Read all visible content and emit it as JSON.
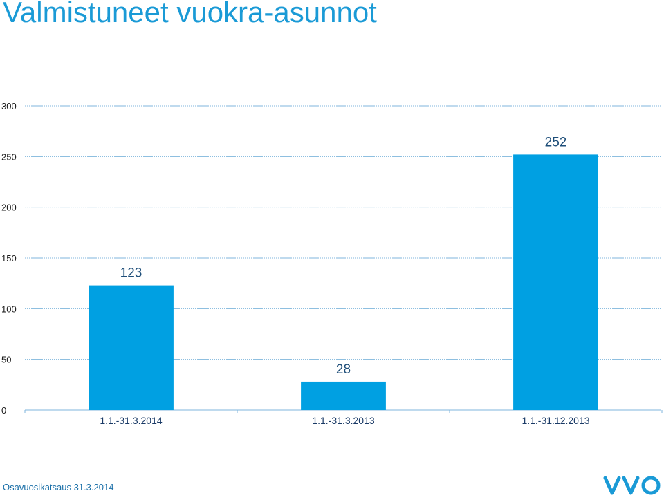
{
  "title": "Valmistuneet vuokra-asunnot",
  "footer": "Osavuosikatsaus 31.3.2014",
  "logo_icon": "vvo-logo-icon",
  "colors": {
    "bar": "#00a0e2",
    "title": "#1a9ad6",
    "grid": "#7fb6dc",
    "footer": "#1a6fa8",
    "logo": "#1a9ad6"
  },
  "chart_data": {
    "type": "bar",
    "categories": [
      "1.1.-31.3.2014",
      "1.1.-31.3.2013",
      "1.1.-31.12.2013"
    ],
    "values": [
      123,
      28,
      252
    ],
    "data_labels": [
      "123",
      "28",
      "252"
    ],
    "title": "",
    "xlabel": "",
    "ylabel": "",
    "ylim": [
      0,
      300
    ],
    "yticks": [
      0,
      50,
      100,
      150,
      200,
      250,
      300
    ],
    "grid": true,
    "legend": "none"
  }
}
